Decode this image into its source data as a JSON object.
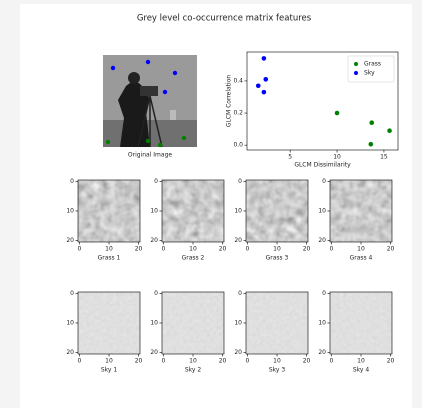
{
  "title": "Grey level co-occurrence matrix features",
  "original_image_label": "Original Image",
  "patch_ticks": [
    0,
    10,
    20
  ],
  "grass_patches": [
    "Grass 1",
    "Grass 2",
    "Grass 3",
    "Grass 4"
  ],
  "sky_patches": [
    "Sky 1",
    "Sky 2",
    "Sky 3",
    "Sky 4"
  ],
  "chart_data": {
    "type": "scatter",
    "xlabel": "GLCM Dissimilarity",
    "ylabel": "GLCM Correlation",
    "series": [
      {
        "name": "Grass",
        "color": "#008000",
        "x": [
          10.0,
          13.7,
          15.6,
          13.6
        ],
        "values": [
          0.2,
          0.14,
          0.09,
          0.006
        ]
      },
      {
        "name": "Sky",
        "color": "#0000ff",
        "x": [
          2.2,
          2.4,
          1.6,
          2.2
        ],
        "values": [
          0.54,
          0.41,
          0.37,
          0.33
        ]
      }
    ],
    "xlim": [
      0.4,
      16.5
    ],
    "ylim": [
      -0.03,
      0.58
    ],
    "xticks": [
      5,
      10,
      15
    ],
    "yticks": [
      {
        "value": 0,
        "label": "0.0"
      },
      0.2,
      0.4
    ],
    "legend": "upper right"
  }
}
